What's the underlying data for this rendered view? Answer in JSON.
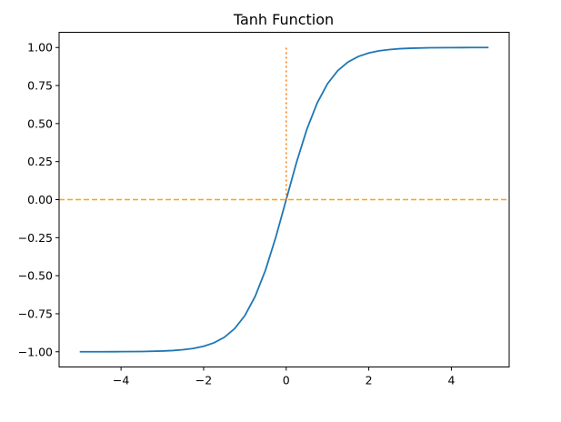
{
  "chart_data": {
    "type": "line",
    "title": "Tanh Function",
    "xlabel": "",
    "ylabel": "",
    "xlim": [
      -5.5,
      5.4
    ],
    "ylim": [
      -1.1,
      1.1
    ],
    "grid": false,
    "x_ticks": [
      {
        "value": -4,
        "label": "−4"
      },
      {
        "value": -2,
        "label": "−2"
      },
      {
        "value": 0,
        "label": "0"
      },
      {
        "value": 2,
        "label": "2"
      },
      {
        "value": 4,
        "label": "4"
      }
    ],
    "y_ticks": [
      {
        "value": 1.0,
        "label": "1.00"
      },
      {
        "value": 0.75,
        "label": "0.75"
      },
      {
        "value": 0.5,
        "label": "0.50"
      },
      {
        "value": 0.25,
        "label": "0.25"
      },
      {
        "value": 0.0,
        "label": "0.00"
      },
      {
        "value": -0.25,
        "label": "−0.25"
      },
      {
        "value": -0.5,
        "label": "−0.50"
      },
      {
        "value": -0.75,
        "label": "−0.75"
      },
      {
        "value": -1.0,
        "label": "−1.00"
      }
    ],
    "series": [
      {
        "function": "tanh",
        "color": "#1f77b4",
        "style": "solid",
        "x": [
          -5.0,
          -4.5,
          -4.0,
          -3.5,
          -3.0,
          -2.75,
          -2.5,
          -2.25,
          -2.0,
          -1.75,
          -1.5,
          -1.25,
          -1.0,
          -0.75,
          -0.5,
          -0.25,
          0.0,
          0.25,
          0.5,
          0.75,
          1.0,
          1.25,
          1.5,
          1.75,
          2.0,
          2.25,
          2.5,
          2.75,
          3.0,
          3.5,
          4.0,
          4.5,
          4.9
        ],
        "y": [
          -0.9999,
          -0.9998,
          -0.9993,
          -0.9982,
          -0.9951,
          -0.9919,
          -0.9866,
          -0.978,
          -0.964,
          -0.9414,
          -0.9051,
          -0.8483,
          -0.7616,
          -0.6351,
          -0.4621,
          -0.2449,
          0.0,
          0.2449,
          0.4621,
          0.6351,
          0.7616,
          0.8483,
          0.9051,
          0.9414,
          0.964,
          0.978,
          0.9866,
          0.9919,
          0.9951,
          0.9982,
          0.9993,
          0.9998,
          0.9999
        ]
      }
    ],
    "reference_lines": [
      {
        "orientation": "horizontal",
        "y": 0,
        "color": "#ffa500",
        "style": "dashed",
        "span": "full"
      },
      {
        "orientation": "vertical",
        "x": 0,
        "y_from": 0,
        "y_to": 1,
        "color": "#ff7f0e",
        "style": "dotted"
      }
    ]
  }
}
